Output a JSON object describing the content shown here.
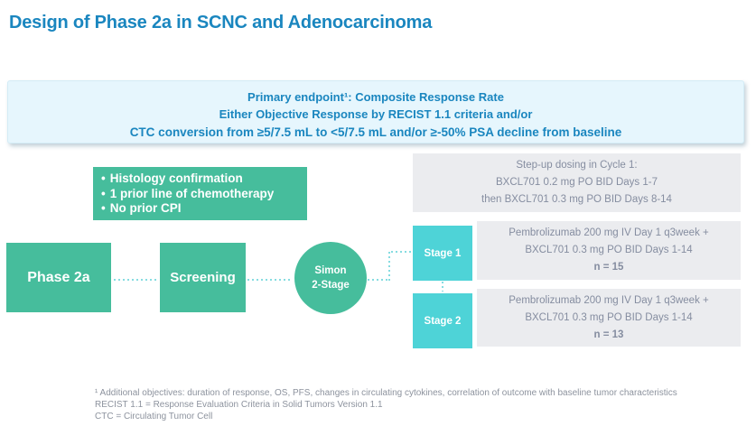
{
  "title": "Design of Phase 2a in SCNC and Adenocarcinoma",
  "endpoint_box": {
    "line1": "Primary endpoint¹: Composite Response Rate",
    "line2": "Either Objective Response by RECIST 1.1 criteria and/or",
    "line3": "CTC conversion from ≥5/7.5 mL to <5/7.5 mL and/or ≥-50% PSA decline from baseline"
  },
  "eligibility_box": {
    "bullet": "•",
    "items": [
      "Histology confirmation",
      "1 prior line of chemotherapy",
      "No prior CPI"
    ]
  },
  "stepup_box": {
    "line1": "Step-up dosing in Cycle 1:",
    "line2": "BXCL701 0.2 mg PO BID Days 1-7",
    "line3": "then BXCL701 0.3 mg PO BID Days 8-14"
  },
  "flow": {
    "phase_label": "Phase 2a",
    "screening_label": "Screening",
    "simon_line1": "Simon",
    "simon_line2": "2-Stage"
  },
  "stages": [
    {
      "label": "Stage 1",
      "line1": "Pembrolizumab 200 mg IV Day 1 q3week +",
      "line2": "BXCL701 0.3 mg PO BID Days 1-14",
      "n": "n = 15"
    },
    {
      "label": "Stage 2",
      "line1": "Pembrolizumab 200 mg IV Day 1 q3week +",
      "line2": "BXCL701 0.3 mg PO BID Days 1-14",
      "n": "n = 13"
    }
  ],
  "footnotes": [
    "¹ Additional objectives: duration of response, OS, PFS, changes in circulating cytokines, correlation of outcome with baseline tumor characteristics",
    "RECIST 1.1 = Response Evaluation Criteria in Solid Tumors Version 1.1",
    "CTC = Circulating Tumor Cell"
  ],
  "colors": {
    "title_blue": "#1a86bf",
    "endpoint_bg": "#e6f6fd",
    "green": "#46bd9c",
    "stage_teal": "#4ed3d7",
    "gray_box_bg": "#ebecef",
    "gray_text": "#858da0",
    "connector": "#86dce1",
    "footnote_gray": "#8d939e"
  }
}
